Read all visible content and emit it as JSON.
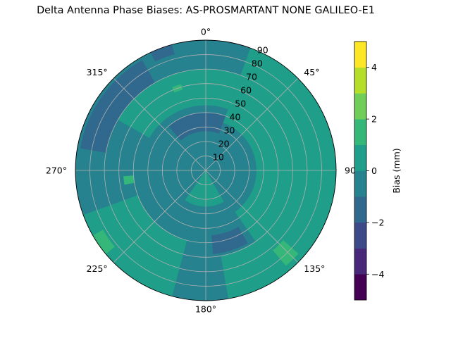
{
  "chart_data": {
    "type": "polar_contour",
    "title": "Delta Antenna Phase Biases: AS-PROSMARTANT  NONE GALILEO-E1",
    "azimuth_ticks": [
      {
        "deg": 0,
        "label": "0°"
      },
      {
        "deg": 45,
        "label": "45°"
      },
      {
        "deg": 90,
        "label": "90°"
      },
      {
        "deg": 135,
        "label": "135°"
      },
      {
        "deg": 180,
        "label": "180°"
      },
      {
        "deg": 225,
        "label": "225°"
      },
      {
        "deg": 270,
        "label": "270°"
      },
      {
        "deg": 315,
        "label": "315°"
      }
    ],
    "radial_ticks": [
      {
        "value": 10,
        "label": "10"
      },
      {
        "value": 20,
        "label": "20"
      },
      {
        "value": 30,
        "label": "30"
      },
      {
        "value": 40,
        "label": "40"
      },
      {
        "value": 50,
        "label": "50"
      },
      {
        "value": 60,
        "label": "60"
      },
      {
        "value": 70,
        "label": "70"
      },
      {
        "value": 80,
        "label": "80"
      },
      {
        "value": 90,
        "label": "90"
      }
    ],
    "rlim": [
      0,
      90
    ],
    "grid": true,
    "colorbar": {
      "label": "Bias (mm)",
      "vmin": -5,
      "vmax": 5,
      "levels": [
        -5,
        -4,
        -3,
        -2,
        -1,
        0,
        1,
        2,
        3,
        4,
        5
      ],
      "colors": [
        "#440154",
        "#482878",
        "#3e4989",
        "#31688e",
        "#26828e",
        "#1f9e89",
        "#35b779",
        "#6ece58",
        "#b5de2b",
        "#fde725"
      ],
      "ticks": [
        {
          "value": -4,
          "label": "−4"
        },
        {
          "value": -2,
          "label": "−2"
        },
        {
          "value": 0,
          "label": "0"
        },
        {
          "value": 2,
          "label": "2"
        },
        {
          "value": 4,
          "label": "4"
        }
      ]
    },
    "regions": [
      {
        "level": "-1 to 0",
        "az": [
          0,
          360
        ],
        "r": [
          0,
          90
        ]
      },
      {
        "level": "0 to 1",
        "az": [
          20,
          145
        ],
        "r": [
          35,
          90
        ]
      },
      {
        "level": "0 to 1",
        "az": [
          300,
          380
        ],
        "r": [
          45,
          70
        ]
      },
      {
        "level": "0 to 1",
        "az": [
          150,
          215
        ],
        "r": [
          0,
          25
        ]
      },
      {
        "level": "0 to 1",
        "az": [
          195,
          250
        ],
        "r": [
          50,
          90
        ]
      },
      {
        "level": "0 to 1",
        "az": [
          110,
          170
        ],
        "r": [
          60,
          90
        ]
      },
      {
        "level": "1 to 2",
        "az": [
          132,
          140
        ],
        "r": [
          72,
          86
        ]
      },
      {
        "level": "1 to 2",
        "az": [
          230,
          240
        ],
        "r": [
          82,
          92
        ]
      },
      {
        "level": "1 to 2",
        "az": [
          260,
          266
        ],
        "r": [
          50,
          57
        ]
      },
      {
        "level": "1 to 2",
        "az": [
          338,
          344
        ],
        "r": [
          58,
          62
        ]
      },
      {
        "level": "-2 to -1",
        "az": [
          280,
          330
        ],
        "r": [
          70,
          88
        ]
      },
      {
        "level": "-2 to -1",
        "az": [
          335,
          345
        ],
        "r": [
          83,
          90
        ]
      },
      {
        "level": "-2 to -1",
        "az": [
          320,
          20
        ],
        "r": [
          27,
          40
        ]
      },
      {
        "level": "-2 to -1",
        "az": [
          150,
          175
        ],
        "r": [
          45,
          58
        ]
      }
    ]
  }
}
